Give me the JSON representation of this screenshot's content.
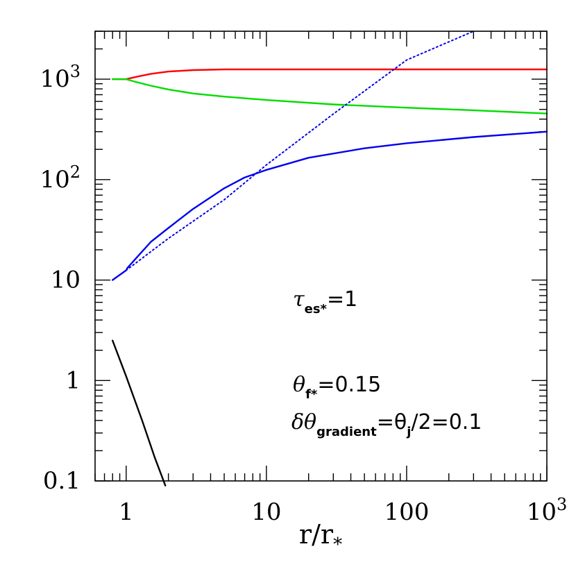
{
  "chart_data": {
    "type": "line",
    "xscale": "log",
    "yscale": "log",
    "xlim": [
      0.6,
      1000
    ],
    "ylim": [
      0.1,
      3000
    ],
    "xlabel": "r/r*",
    "ylabel": "",
    "grid": false,
    "x_ticks": [
      {
        "value": 1,
        "label": "1"
      },
      {
        "value": 10,
        "label": "10"
      },
      {
        "value": 100,
        "label": "100"
      },
      {
        "value": 1000,
        "label": "10",
        "sup": "3"
      }
    ],
    "y_ticks": [
      {
        "value": 0.1,
        "label": "0.1"
      },
      {
        "value": 1,
        "label": "1"
      },
      {
        "value": 10,
        "label": "10"
      },
      {
        "value": 100,
        "label": "10",
        "sup": "2"
      },
      {
        "value": 1000,
        "label": "10",
        "sup": "3"
      }
    ],
    "series": [
      {
        "color": "#ff0000",
        "style": "solid",
        "x": [
          0.8,
          1.0,
          1.2,
          1.5,
          2,
          3,
          5,
          10,
          30,
          100,
          300,
          1000
        ],
        "y": [
          1000,
          1000,
          1060,
          1130,
          1190,
          1230,
          1250,
          1250,
          1250,
          1250,
          1250,
          1250
        ]
      },
      {
        "color": "#00dd00",
        "style": "solid",
        "x": [
          0.8,
          1.0,
          1.2,
          1.5,
          2,
          3,
          5,
          10,
          30,
          100,
          300,
          1000
        ],
        "y": [
          1000,
          1000,
          930,
          860,
          790,
          720,
          670,
          620,
          560,
          520,
          490,
          455
        ]
      },
      {
        "color": "#0000ee",
        "style": "solid",
        "x": [
          0.8,
          1.0,
          1.02,
          1.2,
          1.5,
          2,
          3,
          5,
          7,
          10,
          20,
          50,
          100,
          300,
          1000
        ],
        "y": [
          10,
          12.5,
          13.2,
          17,
          24,
          33,
          51,
          82,
          105,
          125,
          165,
          205,
          230,
          265,
          300
        ]
      },
      {
        "color": "#0000ee",
        "style": "dotted",
        "x": [
          1.0,
          2,
          5,
          10,
          30,
          100,
          300
        ],
        "y": [
          12.5,
          26,
          63,
          140,
          450,
          1550,
          3000
        ]
      },
      {
        "color": "#000000",
        "style": "solid",
        "x": [
          0.8,
          1.0,
          1.3,
          1.6,
          1.9
        ],
        "y": [
          2.5,
          1.1,
          0.4,
          0.17,
          0.09
        ]
      }
    ],
    "annotations": {
      "tau": {
        "symbol": "τ",
        "sub": "es*",
        "rest": "=1"
      },
      "theta": {
        "symbol": "θ",
        "sub": "f*",
        "rest": "=0.15"
      },
      "gradient": {
        "symbol": "δθ",
        "sub": "gradient",
        "mid": "=θ",
        "sub2": "j",
        "rest": "/2=0.1"
      }
    }
  }
}
